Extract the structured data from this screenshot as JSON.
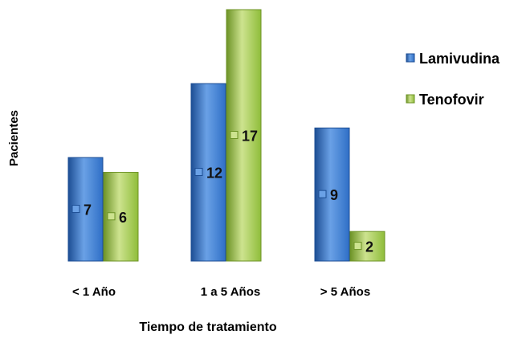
{
  "chart_data": {
    "type": "bar",
    "categories": [
      "< 1 Año",
      "1 a 5 Años",
      "> 5 Años"
    ],
    "series": [
      {
        "name": "Lamivudina",
        "values": [
          7,
          12,
          9
        ],
        "color": "#2f6fc6",
        "color_light": "#6aa1e6",
        "color_dark": "#1d4e94"
      },
      {
        "name": "Tenofovir",
        "values": [
          6,
          17,
          2
        ],
        "color": "#8fbd3a",
        "color_light": "#cde38f",
        "color_dark": "#6d9326"
      }
    ],
    "title": "",
    "xlabel": "Tiempo de tratamiento",
    "ylabel": "Pacientes",
    "ylim": [
      0,
      17
    ],
    "grid": false,
    "legend_position": "right",
    "data_labels": true
  }
}
